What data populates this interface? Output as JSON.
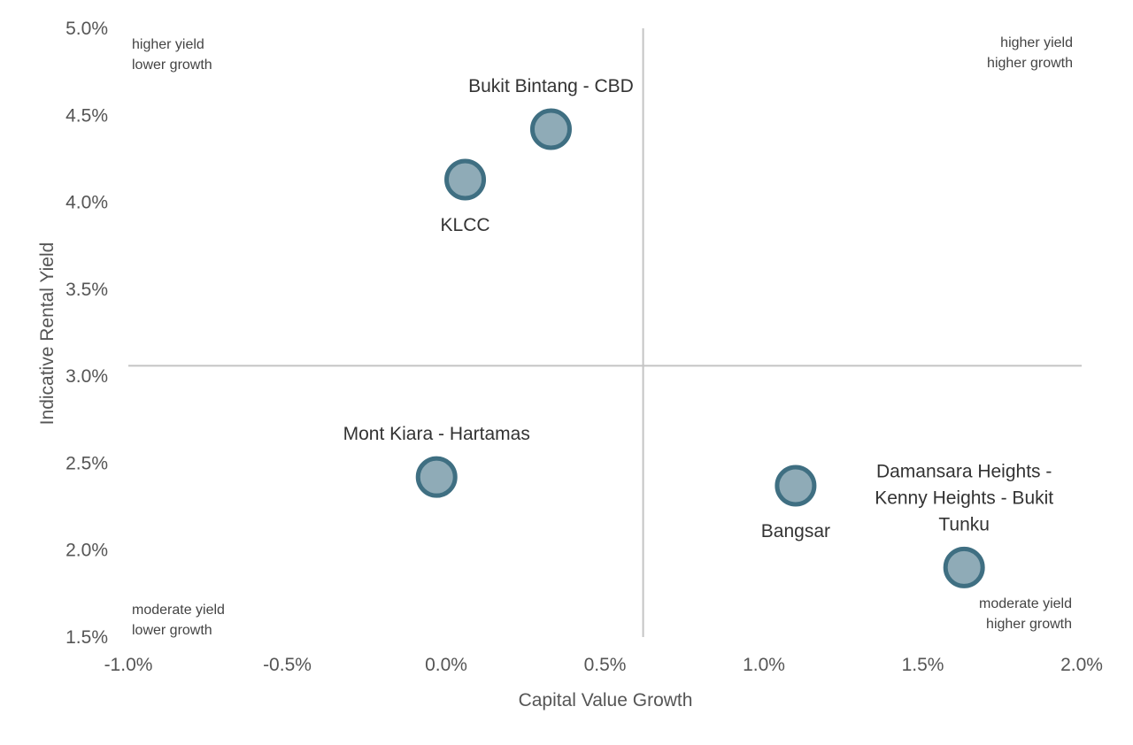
{
  "colors": {
    "point_fill": "#8fabb7",
    "point_stroke": "#3f6f82",
    "divider": "#c4c4c4",
    "text": "#555555"
  },
  "chart_data": {
    "type": "scatter",
    "title": "",
    "xlabel": "Capital Value Growth",
    "ylabel": "Indicative Rental Yield",
    "xlim": [
      -1.0,
      2.0
    ],
    "ylim": [
      1.5,
      5.0
    ],
    "x_ticks": [
      "-1.0%",
      "-0.5%",
      "0.0%",
      "0.5%",
      "1.0%",
      "1.5%",
      "2.0%"
    ],
    "y_ticks": [
      "5.0%",
      "4.5%",
      "4.0%",
      "3.5%",
      "3.0%",
      "2.5%",
      "2.0%",
      "1.5%"
    ],
    "grid": false,
    "dividers": {
      "x": 0.62,
      "y": 3.06
    },
    "quadrant_labels": {
      "top_left": [
        "higher yield",
        "lower growth"
      ],
      "top_right": [
        "higher yield",
        "higher growth"
      ],
      "bottom_left": [
        "moderate yield",
        "lower growth"
      ],
      "bottom_right": [
        "moderate yield",
        "higher growth"
      ]
    },
    "points": [
      {
        "name": "Bukit Bintang - CBD",
        "x": 0.33,
        "y": 4.42,
        "label_position": "above"
      },
      {
        "name": "KLCC",
        "x": 0.06,
        "y": 4.13,
        "label_position": "below"
      },
      {
        "name": "Mont Kiara - Hartamas",
        "x": -0.03,
        "y": 2.42,
        "label_position": "above"
      },
      {
        "name": "Bangsar",
        "x": 1.1,
        "y": 2.37,
        "label_position": "below"
      },
      {
        "name": "Damansara Heights - Kenny Heights - Bukit Tunku",
        "label_lines": [
          "Damansara Heights -",
          "Kenny Heights - Bukit",
          "Tunku"
        ],
        "x": 1.63,
        "y": 1.9,
        "label_position": "above"
      }
    ]
  }
}
